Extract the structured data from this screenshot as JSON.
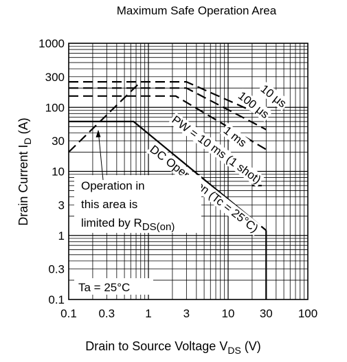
{
  "chart_data": {
    "type": "line",
    "title": "Maximum Safe Operation Area",
    "xlabel": {
      "main": "Drain to Source Voltage  V",
      "sub": "DS",
      "unit": "  (V)"
    },
    "ylabel": {
      "main": "Drain Current  I",
      "sub": "D",
      "unit": "  (A)"
    },
    "x_scale": "log",
    "y_scale": "log",
    "xlim": [
      0.1,
      100
    ],
    "ylim": [
      0.1,
      1000
    ],
    "x_ticks": [
      {
        "value": 0.1,
        "label": "0.1"
      },
      {
        "value": 0.3,
        "label": "0.3"
      },
      {
        "value": 1,
        "label": "1"
      },
      {
        "value": 3,
        "label": "3"
      },
      {
        "value": 10,
        "label": "10"
      },
      {
        "value": 30,
        "label": "30"
      },
      {
        "value": 100,
        "label": "100"
      }
    ],
    "y_ticks": [
      {
        "value": 0.1,
        "label": "0.1"
      },
      {
        "value": 0.3,
        "label": "0.3"
      },
      {
        "value": 1,
        "label": "1"
      },
      {
        "value": 3,
        "label": "3"
      },
      {
        "value": 10,
        "label": "10"
      },
      {
        "value": 30,
        "label": "30"
      },
      {
        "value": 100,
        "label": "100"
      },
      {
        "value": 300,
        "label": "300"
      },
      {
        "value": 1000,
        "label": "1000"
      }
    ],
    "grid": true,
    "series": [
      {
        "id": "rds-limit",
        "style": "dash",
        "points": [
          [
            0.1,
            20
          ],
          [
            0.8,
            250
          ]
        ]
      },
      {
        "id": "10us",
        "name": "10 μs",
        "style": "dash",
        "points": [
          [
            0.1,
            250
          ],
          [
            3,
            250
          ],
          [
            30,
            70
          ]
        ]
      },
      {
        "id": "100us",
        "name": "100 μs",
        "style": "dash",
        "points": [
          [
            0.1,
            200
          ],
          [
            3,
            200
          ],
          [
            30,
            45
          ]
        ]
      },
      {
        "id": "1ms",
        "name": "1 ms",
        "style": "dash",
        "points": [
          [
            0.1,
            150
          ],
          [
            2.2,
            150
          ],
          [
            30,
            22
          ]
        ]
      },
      {
        "id": "10ms",
        "name": "PW = 10 ms (1 shot)",
        "style": "dash",
        "points": [
          [
            20,
            6
          ],
          [
            30,
            6
          ]
        ]
      },
      {
        "id": "dc",
        "name": "DC Operation (Tc = 25°C)",
        "style": "solid",
        "points": [
          [
            0.1,
            60
          ],
          [
            0.65,
            60
          ],
          [
            30,
            1.2
          ]
        ]
      },
      {
        "id": "vmax",
        "style": "solid",
        "points": [
          [
            30,
            0.1
          ],
          [
            30,
            1.2
          ]
        ]
      }
    ],
    "annotations": {
      "curve_labels": [
        {
          "ref": "10us",
          "text": "10 μs"
        },
        {
          "ref": "100us",
          "text": "100 μs"
        },
        {
          "ref": "1ms",
          "text": "1 ms"
        },
        {
          "ref": "10ms",
          "text": "PW = 10 ms (1 shot)"
        },
        {
          "ref": "dc",
          "text": "DC Operation (Tc = 25°C)"
        }
      ],
      "limit_note": {
        "lines": [
          "Operation in",
          "this area is",
          "limited by R"
        ],
        "sub": "DS(on)"
      },
      "ambient": "Ta = 25°C"
    }
  }
}
